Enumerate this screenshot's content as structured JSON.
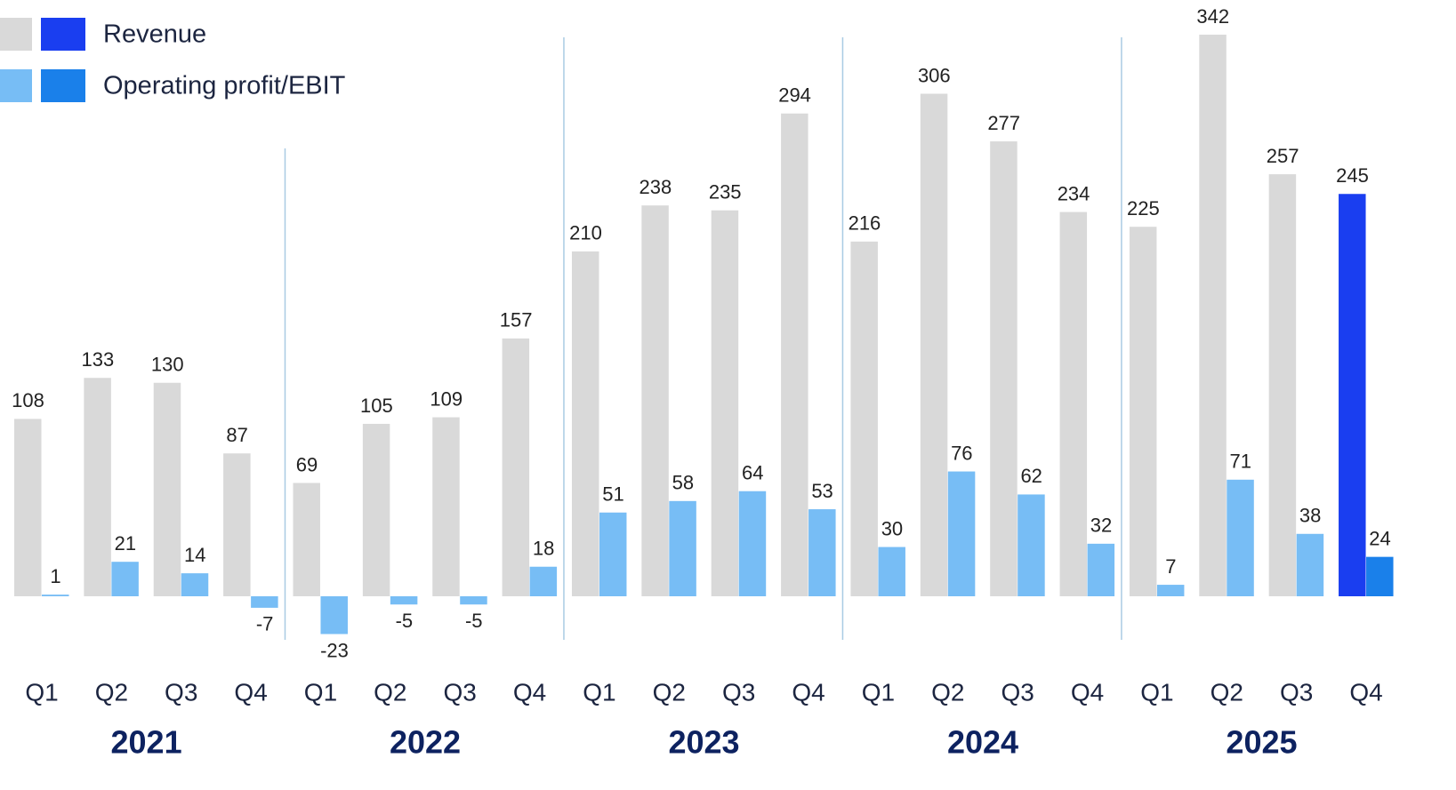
{
  "chart_data": {
    "type": "bar",
    "categories": [
      "Q1",
      "Q2",
      "Q3",
      "Q4",
      "Q1",
      "Q2",
      "Q3",
      "Q4",
      "Q1",
      "Q2",
      "Q3",
      "Q4",
      "Q1",
      "Q2",
      "Q3",
      "Q4",
      "Q1",
      "Q2",
      "Q3",
      "Q4"
    ],
    "groups": [
      "2021",
      "2022",
      "2023",
      "2024",
      "2025"
    ],
    "highlight_index": 19,
    "series": [
      {
        "name": "Revenue",
        "color": "#d9d9d9",
        "highlight_color": "#1a3ef0",
        "values": [
          108,
          133,
          130,
          87,
          69,
          105,
          109,
          157,
          210,
          238,
          235,
          294,
          216,
          306,
          277,
          234,
          225,
          342,
          257,
          245
        ]
      },
      {
        "name": "Operating profit/EBIT",
        "color": "#77bdf5",
        "highlight_color": "#1a80ea",
        "values": [
          1,
          21,
          14,
          -7,
          -23,
          -5,
          -5,
          18,
          51,
          58,
          64,
          53,
          30,
          76,
          62,
          32,
          7,
          71,
          38,
          24
        ]
      }
    ]
  }
}
